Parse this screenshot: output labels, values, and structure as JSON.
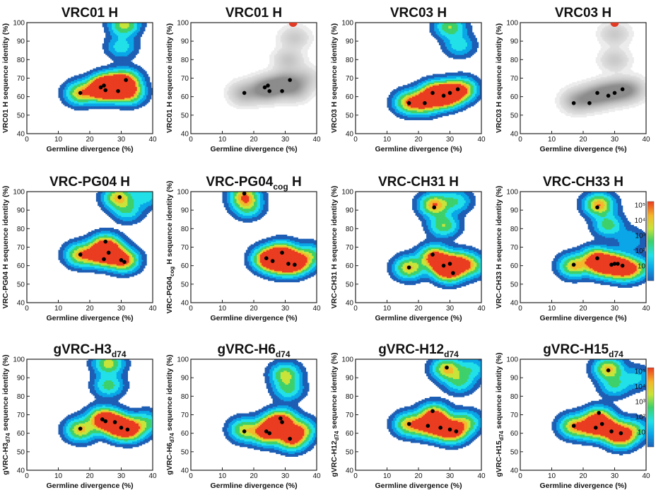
{
  "figure": {
    "description_free": true
  },
  "colorbar": {
    "labels": [
      "10",
      "10²",
      "10³",
      "10⁴",
      "10⁵"
    ],
    "stops": [
      "#1e5fb5",
      "#0aa6e8",
      "#22e0e8",
      "#3ed06a",
      "#c8e43a",
      "#f3b82c",
      "#ea3c20"
    ]
  },
  "chart_data": [
    {
      "type": "contour",
      "title_main": "VRC01 H",
      "title_sub": "",
      "title_suffix": "",
      "mode": "color",
      "xlabel": "Germline divergence (%)",
      "ylabel": "VRC01 H sequence identity (%)",
      "ylabel_main": "VRC01 H sequence identity (%)",
      "ylabel_sub": "",
      "ylabel_rest": "",
      "xlim": [
        0,
        40
      ],
      "ylim": [
        40,
        100
      ],
      "xticks": [
        0,
        10,
        20,
        30,
        40
      ],
      "yticks": [
        40,
        50,
        60,
        70,
        80,
        90,
        100
      ],
      "peaks": [
        [
          17,
          62,
          0.8
        ],
        [
          23.5,
          65,
          1.0
        ],
        [
          25,
          64,
          1.0
        ],
        [
          27,
          67,
          0.9
        ],
        [
          30,
          64,
          0.9
        ],
        [
          31.5,
          69,
          0.8
        ],
        [
          33,
          62,
          0.6
        ],
        [
          31,
          99,
          0.7
        ],
        [
          30,
          87,
          0.35
        ]
      ],
      "points": [
        [
          17,
          62
        ],
        [
          23.5,
          65
        ],
        [
          24.5,
          66
        ],
        [
          25,
          63.5
        ],
        [
          29,
          63
        ],
        [
          31.5,
          69
        ]
      ]
    },
    {
      "type": "contour",
      "title_main": "VRC01 H",
      "title_sub": "",
      "title_suffix": "",
      "mode": "gray",
      "xlabel": "Germline divergence (%)",
      "ylabel": "VRC01 H sequence identity (%)",
      "ylabel_main": "VRC01 H sequence identity (%)",
      "ylabel_sub": "",
      "ylabel_rest": "",
      "xlim": [
        0,
        40
      ],
      "ylim": [
        40,
        100
      ],
      "xticks": [
        0,
        10,
        20,
        30,
        40
      ],
      "yticks": [
        40,
        50,
        60,
        70,
        80,
        90,
        100
      ],
      "peaks": [
        [
          17,
          62,
          0.6
        ],
        [
          23,
          64,
          0.8
        ],
        [
          26,
          65,
          0.8
        ],
        [
          30,
          68,
          0.8
        ],
        [
          33,
          64,
          0.6
        ],
        [
          31,
          80,
          0.4
        ],
        [
          33,
          92,
          0.35
        ],
        [
          36,
          70,
          0.4
        ]
      ],
      "points": [
        [
          17,
          62
        ],
        [
          23.5,
          65
        ],
        [
          24.5,
          66
        ],
        [
          25,
          63
        ],
        [
          29,
          63
        ],
        [
          31.5,
          69
        ]
      ],
      "red_point": [
        32.5,
        100
      ]
    },
    {
      "type": "contour",
      "title_main": "VRC03 H",
      "title_sub": "",
      "title_suffix": "",
      "mode": "color",
      "xlabel": "Germline divergence (%)",
      "ylabel": "VRC03 H sequence identity (%)",
      "ylabel_main": "VRC03 H sequence identity (%)",
      "ylabel_sub": "",
      "ylabel_rest": "",
      "xlim": [
        0,
        40
      ],
      "ylim": [
        40,
        100
      ],
      "xticks": [
        0,
        10,
        20,
        30,
        40
      ],
      "yticks": [
        40,
        50,
        60,
        70,
        80,
        90,
        100
      ],
      "peaks": [
        [
          17,
          57,
          0.8
        ],
        [
          22,
          57,
          0.9
        ],
        [
          25,
          62,
          1.0
        ],
        [
          28,
          60,
          0.9
        ],
        [
          30,
          62,
          1.0
        ],
        [
          34,
          64,
          0.8
        ],
        [
          30,
          98,
          0.6
        ],
        [
          33,
          88,
          0.35
        ]
      ],
      "points": [
        [
          17,
          56.5
        ],
        [
          22,
          56.5
        ],
        [
          24.5,
          62
        ],
        [
          28,
          60.5
        ],
        [
          30,
          62
        ],
        [
          32.5,
          64
        ]
      ]
    },
    {
      "type": "contour",
      "title_main": "VRC03 H",
      "title_sub": "",
      "title_suffix": "",
      "mode": "gray",
      "xlabel": "Germline divergence (%)",
      "ylabel": "VRC03 H sequence identity (%)",
      "ylabel_main": "VRC03 H sequence identity (%)",
      "ylabel_sub": "",
      "ylabel_rest": "",
      "xlim": [
        0,
        40
      ],
      "ylim": [
        40,
        100
      ],
      "xticks": [
        0,
        10,
        20,
        30,
        40
      ],
      "yticks": [
        40,
        50,
        60,
        70,
        80,
        90,
        100
      ],
      "peaks": [
        [
          18,
          58,
          0.7
        ],
        [
          23,
          60,
          0.8
        ],
        [
          27,
          62,
          0.8
        ],
        [
          31,
          63,
          0.8
        ],
        [
          35,
          64,
          0.7
        ],
        [
          30,
          80,
          0.35
        ],
        [
          30,
          94,
          0.35
        ]
      ],
      "points": [
        [
          17,
          56.5
        ],
        [
          22,
          56.5
        ],
        [
          24.5,
          62
        ],
        [
          28,
          60.5
        ],
        [
          30,
          62
        ],
        [
          32.5,
          64
        ]
      ],
      "red_point": [
        30,
        100
      ]
    },
    {
      "type": "contour",
      "title_main": "VRC-PG04 H",
      "title_sub": "",
      "title_suffix": "",
      "mode": "color",
      "xlabel": "Germline divergence (%)",
      "ylabel": "VRC-PG04 H sequence identity (%)",
      "ylabel_main": "VRC-PG04 H sequence identity (%)",
      "ylabel_sub": "",
      "ylabel_rest": "",
      "xlim": [
        0,
        40
      ],
      "ylim": [
        40,
        100
      ],
      "xticks": [
        0,
        10,
        20,
        30,
        40
      ],
      "yticks": [
        40,
        50,
        60,
        70,
        80,
        90,
        100
      ],
      "peaks": [
        [
          17,
          66,
          0.8
        ],
        [
          23,
          66,
          0.9
        ],
        [
          25,
          71,
          1.0
        ],
        [
          27,
          66,
          0.9
        ],
        [
          31,
          63,
          0.9
        ],
        [
          29,
          97,
          0.8
        ],
        [
          32,
          90,
          0.4
        ],
        [
          38,
          98,
          0.35
        ]
      ],
      "points": [
        [
          17,
          66
        ],
        [
          24.5,
          63.5
        ],
        [
          25,
          73
        ],
        [
          26,
          67
        ],
        [
          30,
          63
        ],
        [
          31,
          62
        ],
        [
          29.5,
          97
        ]
      ]
    },
    {
      "type": "contour",
      "title_main": "VRC-PG04",
      "title_sub": "cog",
      "title_suffix": " H",
      "mode": "color",
      "xlabel": "Germline divergence (%)",
      "ylabel": "VRC-PG04cog H sequence identity (%)",
      "ylabel_main": "VRC-PG04",
      "ylabel_sub": "cog",
      "ylabel_rest": " H sequence identity (%)",
      "xlim": [
        0,
        40
      ],
      "ylim": [
        40,
        100
      ],
      "xticks": [
        0,
        10,
        20,
        30,
        40
      ],
      "yticks": [
        40,
        50,
        60,
        70,
        80,
        90,
        100
      ],
      "peaks": [
        [
          17,
          98,
          0.8
        ],
        [
          18,
          92,
          0.5
        ],
        [
          24,
          64,
          0.9
        ],
        [
          27,
          62,
          0.9
        ],
        [
          29,
          67,
          1.0
        ],
        [
          31,
          61,
          1.0
        ],
        [
          34,
          62,
          0.8
        ],
        [
          38,
          66,
          0.45
        ]
      ],
      "points": [
        [
          17,
          99
        ],
        [
          24,
          64
        ],
        [
          26,
          62.5
        ],
        [
          29,
          67
        ],
        [
          31,
          61
        ],
        [
          33,
          60.5
        ]
      ]
    },
    {
      "type": "contour",
      "title_main": "VRC-CH31 H",
      "title_sub": "",
      "title_suffix": "",
      "mode": "color",
      "xlabel": "Germline divergence (%)",
      "ylabel": "VRC-CH31 H sequence identity (%)",
      "ylabel_main": "VRC-CH31 H sequence identity (%)",
      "ylabel_sub": "",
      "ylabel_rest": "",
      "xlim": [
        0,
        40
      ],
      "ylim": [
        40,
        100
      ],
      "xticks": [
        0,
        10,
        20,
        30,
        40
      ],
      "yticks": [
        40,
        50,
        60,
        70,
        80,
        90,
        100
      ],
      "peaks": [
        [
          17,
          59,
          0.8
        ],
        [
          25,
          65,
          1.0
        ],
        [
          28,
          60,
          0.9
        ],
        [
          30,
          57,
          0.9
        ],
        [
          33,
          62,
          0.8
        ],
        [
          37,
          60,
          0.5
        ],
        [
          25,
          93,
          0.9
        ],
        [
          28,
          82,
          0.6
        ],
        [
          32,
          95,
          0.4
        ]
      ],
      "points": [
        [
          17,
          59
        ],
        [
          24.5,
          66
        ],
        [
          28,
          60
        ],
        [
          30,
          61
        ],
        [
          31,
          56
        ],
        [
          25,
          91.5
        ]
      ]
    },
    {
      "type": "contour",
      "title_main": "VRC-CH33 H",
      "title_sub": "",
      "title_suffix": "",
      "mode": "color",
      "xlabel": "Germline divergence (%)",
      "ylabel": "VRC-CH33 H sequence identity (%)",
      "ylabel_main": "VRC-CH33 H sequence identity (%)",
      "ylabel_sub": "",
      "ylabel_rest": "",
      "xlim": [
        0,
        40
      ],
      "ylim": [
        40,
        100
      ],
      "xticks": [
        0,
        10,
        20,
        30,
        40
      ],
      "yticks": [
        40,
        50,
        60,
        70,
        80,
        90,
        100
      ],
      "peaks": [
        [
          17,
          60,
          0.8
        ],
        [
          24,
          64,
          0.9
        ],
        [
          26,
          60,
          0.9
        ],
        [
          30,
          61,
          1.0
        ],
        [
          33,
          58,
          0.9
        ],
        [
          37,
          59,
          0.5
        ],
        [
          25,
          93,
          0.9
        ],
        [
          28,
          82,
          0.5
        ],
        [
          35,
          74,
          0.25
        ]
      ],
      "points": [
        [
          17,
          60.5
        ],
        [
          24.5,
          64
        ],
        [
          29,
          60.5
        ],
        [
          30,
          61
        ],
        [
          31,
          61
        ],
        [
          32.5,
          60
        ],
        [
          24.5,
          91.5
        ]
      ]
    },
    {
      "type": "contour",
      "title_main": "gVRC-H3",
      "title_sub": "d74",
      "title_suffix": "",
      "mode": "color",
      "xlabel": "Germline divergence (%)",
      "ylabel": "gVRC-H3d74 sequence identity (%)",
      "ylabel_main": "gVRC-H3",
      "ylabel_sub": "d74",
      "ylabel_rest": " sequence identity (%)",
      "xlim": [
        0,
        40
      ],
      "ylim": [
        40,
        100
      ],
      "xticks": [
        0,
        10,
        20,
        30,
        40
      ],
      "yticks": [
        40,
        50,
        60,
        70,
        80,
        90,
        100
      ],
      "peaks": [
        [
          17,
          62,
          0.8
        ],
        [
          24,
          68,
          1.0
        ],
        [
          27,
          66,
          0.9
        ],
        [
          30,
          63,
          1.0
        ],
        [
          33,
          62,
          0.8
        ],
        [
          38,
          66,
          0.45
        ],
        [
          26,
          98,
          0.7
        ],
        [
          26,
          86,
          0.5
        ]
      ],
      "points": [
        [
          17,
          62.5
        ],
        [
          24,
          67.5
        ],
        [
          25,
          66.5
        ],
        [
          28,
          66
        ],
        [
          30,
          63
        ],
        [
          32,
          62
        ]
      ]
    },
    {
      "type": "contour",
      "title_main": "gVRC-H6",
      "title_sub": "d74",
      "title_suffix": "",
      "mode": "color",
      "xlabel": "Germline divergence (%)",
      "ylabel": "gVRC-H6d74 sequence identity (%)",
      "ylabel_main": "gVRC-H6",
      "ylabel_sub": "d74",
      "ylabel_rest": " sequence identity (%)",
      "xlim": [
        0,
        40
      ],
      "ylim": [
        40,
        100
      ],
      "xticks": [
        0,
        10,
        20,
        30,
        40
      ],
      "yticks": [
        40,
        50,
        60,
        70,
        80,
        90,
        100
      ],
      "peaks": [
        [
          17,
          62,
          0.7
        ],
        [
          24,
          60,
          0.9
        ],
        [
          26,
          64,
          0.9
        ],
        [
          29,
          67,
          1.0
        ],
        [
          32,
          57,
          1.0
        ],
        [
          35,
          62,
          0.7
        ],
        [
          30,
          92,
          0.65
        ],
        [
          31,
          84,
          0.45
        ]
      ],
      "points": [
        [
          17,
          61
        ],
        [
          24,
          61
        ],
        [
          25,
          60
        ],
        [
          28.5,
          68
        ],
        [
          29,
          66
        ],
        [
          31.5,
          57
        ]
      ]
    },
    {
      "type": "contour",
      "title_main": "gVRC-H12",
      "title_sub": "d74",
      "title_suffix": "",
      "mode": "color",
      "xlabel": "Germline divergence (%)",
      "ylabel": "gVRC-H12d74 sequence identity (%)",
      "ylabel_main": "gVRC-H12",
      "ylabel_sub": "d74",
      "ylabel_rest": " sequence identity (%)",
      "xlim": [
        0,
        40
      ],
      "ylim": [
        40,
        100
      ],
      "xticks": [
        0,
        10,
        20,
        30,
        40
      ],
      "yticks": [
        40,
        50,
        60,
        70,
        80,
        90,
        100
      ],
      "peaks": [
        [
          17,
          65,
          0.8
        ],
        [
          23,
          64,
          0.9
        ],
        [
          25,
          70,
          1.0
        ],
        [
          28,
          63,
          0.9
        ],
        [
          31,
          61,
          0.9
        ],
        [
          35,
          66,
          0.6
        ],
        [
          29,
          95,
          0.8
        ],
        [
          33,
          88,
          0.45
        ],
        [
          37,
          95,
          0.35
        ]
      ],
      "points": [
        [
          17,
          65
        ],
        [
          23,
          64
        ],
        [
          24.5,
          72
        ],
        [
          27,
          63
        ],
        [
          30,
          62
        ],
        [
          32,
          61
        ],
        [
          29,
          95.5
        ]
      ]
    },
    {
      "type": "contour",
      "title_main": "gVRC-H15",
      "title_sub": "d74",
      "title_suffix": "",
      "mode": "color",
      "xlabel": "Germline divergence (%)",
      "ylabel": "gVRC-H15d74 sequence identity (%)",
      "ylabel_main": "gVRC-H15",
      "ylabel_sub": "d74",
      "ylabel_rest": " sequence identity (%)",
      "xlim": [
        0,
        40
      ],
      "ylim": [
        40,
        100
      ],
      "xticks": [
        0,
        10,
        20,
        30,
        40
      ],
      "yticks": [
        40,
        50,
        60,
        70,
        80,
        90,
        100
      ],
      "peaks": [
        [
          17,
          64,
          0.8
        ],
        [
          23,
          63,
          0.9
        ],
        [
          25,
          68,
          1.0
        ],
        [
          29,
          62,
          0.9
        ],
        [
          32,
          58,
          0.9
        ],
        [
          36,
          62,
          0.5
        ],
        [
          28,
          95,
          0.8
        ],
        [
          30,
          86,
          0.4
        ],
        [
          37,
          90,
          0.3
        ]
      ],
      "points": [
        [
          17,
          64
        ],
        [
          24,
          63
        ],
        [
          25,
          71
        ],
        [
          26,
          65
        ],
        [
          29,
          61
        ],
        [
          32,
          60
        ],
        [
          28,
          94
        ]
      ]
    }
  ]
}
